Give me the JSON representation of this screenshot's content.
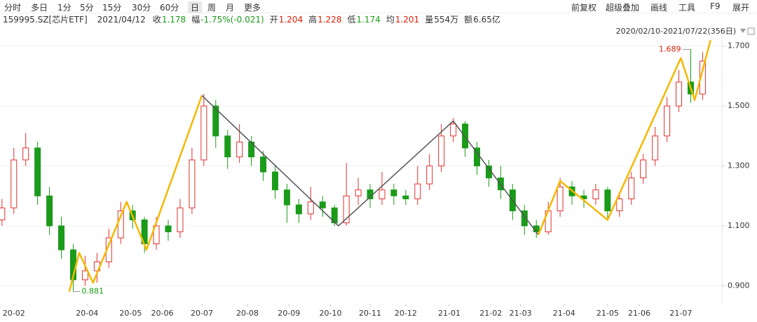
{
  "toolbar": {
    "left": [
      "分时",
      "多日",
      "1分",
      "5分",
      "15分",
      "30分",
      "60分",
      "日",
      "周",
      "月",
      "更多"
    ],
    "active": 7,
    "right": [
      "前复权",
      "超级叠加",
      "画线",
      "工具",
      "F9",
      "展开"
    ]
  },
  "info": {
    "code": "159995.SZ[芯片ETF]",
    "date": "2021/04/12",
    "items": [
      {
        "label": "收",
        "value": "1.178",
        "color": "#1a9b1a"
      },
      {
        "label": "幅",
        "value": "-1.75%(-0.021)",
        "color": "#1a9b1a"
      },
      {
        "label": "开",
        "value": "1.204",
        "color": "#d81e06"
      },
      {
        "label": "高",
        "value": "1.228",
        "color": "#d81e06"
      },
      {
        "label": "低",
        "value": "1.174",
        "color": "#1a9b1a"
      },
      {
        "label": "均",
        "value": "1.201",
        "color": "#d81e06"
      },
      {
        "label": "量",
        "value": "554万",
        "color": "#333"
      },
      {
        "label": "额",
        "value": "6.65亿",
        "color": "#333"
      }
    ]
  },
  "chart_data": {
    "type": "candlestick",
    "range_label": "2020/02/10-2021/07/22(356日)",
    "up_color": "#e0312e",
    "down_color": "#1a9b1a",
    "grid": true,
    "xlim": [
      -1,
      362
    ],
    "ylim": [
      0.84,
      1.725
    ],
    "yticks": [
      {
        "value": 0.9,
        "label": "0.900"
      },
      {
        "value": 1.1,
        "label": "1.100"
      },
      {
        "value": 1.3,
        "label": "1.300"
      },
      {
        "value": 1.5,
        "label": "1.500"
      },
      {
        "value": 1.7,
        "label": "1.700"
      }
    ],
    "xticks": [
      {
        "value": 6,
        "label": "20-02"
      },
      {
        "value": 43,
        "label": "20-04"
      },
      {
        "value": 65,
        "label": "20-05"
      },
      {
        "value": 81,
        "label": "20-06"
      },
      {
        "value": 101,
        "label": "20-07"
      },
      {
        "value": 124,
        "label": "20-08"
      },
      {
        "value": 145,
        "label": "20-09"
      },
      {
        "value": 166,
        "label": "20-10"
      },
      {
        "value": 186,
        "label": "20-11"
      },
      {
        "value": 204,
        "label": "20-12"
      },
      {
        "value": 226,
        "label": "21-01"
      },
      {
        "value": 247,
        "label": "21-02"
      },
      {
        "value": 262,
        "label": "21-03"
      },
      {
        "value": 284,
        "label": "21-04"
      },
      {
        "value": 306,
        "label": "21-05"
      },
      {
        "value": 322,
        "label": "21-06"
      },
      {
        "value": 343,
        "label": "21-07"
      }
    ],
    "candles": [
      {
        "x": 0,
        "o": 1.12,
        "h": 1.19,
        "l": 1.1,
        "c": 1.16
      },
      {
        "x": 6,
        "o": 1.16,
        "h": 1.36,
        "l": 1.14,
        "c": 1.32
      },
      {
        "x": 12,
        "o": 1.32,
        "h": 1.41,
        "l": 1.3,
        "c": 1.36
      },
      {
        "x": 18,
        "o": 1.36,
        "h": 1.38,
        "l": 1.17,
        "c": 1.2
      },
      {
        "x": 24,
        "o": 1.2,
        "h": 1.23,
        "l": 1.07,
        "c": 1.1
      },
      {
        "x": 30,
        "o": 1.1,
        "h": 1.13,
        "l": 0.99,
        "c": 1.02
      },
      {
        "x": 36,
        "o": 1.02,
        "h": 1.04,
        "l": 0.881,
        "c": 0.92
      },
      {
        "x": 42,
        "o": 0.92,
        "h": 1.0,
        "l": 0.9,
        "c": 0.95
      },
      {
        "x": 48,
        "o": 0.95,
        "h": 1.01,
        "l": 0.91,
        "c": 0.98
      },
      {
        "x": 54,
        "o": 0.98,
        "h": 1.09,
        "l": 0.96,
        "c": 1.06
      },
      {
        "x": 60,
        "o": 1.06,
        "h": 1.18,
        "l": 1.04,
        "c": 1.15
      },
      {
        "x": 66,
        "o": 1.15,
        "h": 1.17,
        "l": 1.09,
        "c": 1.12
      },
      {
        "x": 72,
        "o": 1.12,
        "h": 1.13,
        "l": 1.01,
        "c": 1.04
      },
      {
        "x": 78,
        "o": 1.04,
        "h": 1.13,
        "l": 1.02,
        "c": 1.1
      },
      {
        "x": 84,
        "o": 1.1,
        "h": 1.12,
        "l": 1.05,
        "c": 1.08
      },
      {
        "x": 90,
        "o": 1.08,
        "h": 1.19,
        "l": 1.06,
        "c": 1.16
      },
      {
        "x": 96,
        "o": 1.16,
        "h": 1.36,
        "l": 1.14,
        "c": 1.32
      },
      {
        "x": 102,
        "o": 1.32,
        "h": 1.54,
        "l": 1.3,
        "c": 1.5
      },
      {
        "x": 108,
        "o": 1.5,
        "h": 1.52,
        "l": 1.36,
        "c": 1.4
      },
      {
        "x": 114,
        "o": 1.4,
        "h": 1.42,
        "l": 1.29,
        "c": 1.33
      },
      {
        "x": 120,
        "o": 1.33,
        "h": 1.44,
        "l": 1.31,
        "c": 1.38
      },
      {
        "x": 126,
        "o": 1.38,
        "h": 1.4,
        "l": 1.3,
        "c": 1.33
      },
      {
        "x": 132,
        "o": 1.33,
        "h": 1.35,
        "l": 1.25,
        "c": 1.28
      },
      {
        "x": 138,
        "o": 1.28,
        "h": 1.3,
        "l": 1.19,
        "c": 1.22
      },
      {
        "x": 144,
        "o": 1.22,
        "h": 1.24,
        "l": 1.11,
        "c": 1.17
      },
      {
        "x": 150,
        "o": 1.17,
        "h": 1.19,
        "l": 1.11,
        "c": 1.14
      },
      {
        "x": 156,
        "o": 1.14,
        "h": 1.23,
        "l": 1.12,
        "c": 1.18
      },
      {
        "x": 162,
        "o": 1.18,
        "h": 1.2,
        "l": 1.13,
        "c": 1.16
      },
      {
        "x": 168,
        "o": 1.16,
        "h": 1.17,
        "l": 1.1,
        "c": 1.11
      },
      {
        "x": 174,
        "o": 1.11,
        "h": 1.31,
        "l": 1.1,
        "c": 1.2
      },
      {
        "x": 180,
        "o": 1.2,
        "h": 1.26,
        "l": 1.17,
        "c": 1.22
      },
      {
        "x": 186,
        "o": 1.22,
        "h": 1.24,
        "l": 1.16,
        "c": 1.19
      },
      {
        "x": 192,
        "o": 1.19,
        "h": 1.28,
        "l": 1.17,
        "c": 1.22
      },
      {
        "x": 198,
        "o": 1.22,
        "h": 1.24,
        "l": 1.17,
        "c": 1.2
      },
      {
        "x": 204,
        "o": 1.2,
        "h": 1.22,
        "l": 1.17,
        "c": 1.19
      },
      {
        "x": 210,
        "o": 1.19,
        "h": 1.3,
        "l": 1.17,
        "c": 1.24
      },
      {
        "x": 216,
        "o": 1.24,
        "h": 1.34,
        "l": 1.22,
        "c": 1.3
      },
      {
        "x": 222,
        "o": 1.3,
        "h": 1.44,
        "l": 1.28,
        "c": 1.4
      },
      {
        "x": 228,
        "o": 1.4,
        "h": 1.46,
        "l": 1.38,
        "c": 1.44
      },
      {
        "x": 234,
        "o": 1.44,
        "h": 1.45,
        "l": 1.33,
        "c": 1.36
      },
      {
        "x": 240,
        "o": 1.36,
        "h": 1.38,
        "l": 1.27,
        "c": 1.3
      },
      {
        "x": 246,
        "o": 1.3,
        "h": 1.32,
        "l": 1.23,
        "c": 1.26
      },
      {
        "x": 252,
        "o": 1.26,
        "h": 1.3,
        "l": 1.19,
        "c": 1.22
      },
      {
        "x": 258,
        "o": 1.22,
        "h": 1.24,
        "l": 1.12,
        "c": 1.15
      },
      {
        "x": 264,
        "o": 1.15,
        "h": 1.17,
        "l": 1.07,
        "c": 1.1
      },
      {
        "x": 270,
        "o": 1.1,
        "h": 1.12,
        "l": 1.06,
        "c": 1.08
      },
      {
        "x": 276,
        "o": 1.08,
        "h": 1.18,
        "l": 1.07,
        "c": 1.15
      },
      {
        "x": 282,
        "o": 1.15,
        "h": 1.26,
        "l": 1.13,
        "c": 1.23
      },
      {
        "x": 288,
        "o": 1.23,
        "h": 1.25,
        "l": 1.17,
        "c": 1.2
      },
      {
        "x": 294,
        "o": 1.2,
        "h": 1.22,
        "l": 1.16,
        "c": 1.19
      },
      {
        "x": 300,
        "o": 1.19,
        "h": 1.24,
        "l": 1.17,
        "c": 1.22
      },
      {
        "x": 306,
        "o": 1.22,
        "h": 1.23,
        "l": 1.12,
        "c": 1.15
      },
      {
        "x": 312,
        "o": 1.15,
        "h": 1.21,
        "l": 1.13,
        "c": 1.19
      },
      {
        "x": 318,
        "o": 1.19,
        "h": 1.28,
        "l": 1.17,
        "c": 1.26
      },
      {
        "x": 324,
        "o": 1.26,
        "h": 1.34,
        "l": 1.24,
        "c": 1.32
      },
      {
        "x": 330,
        "o": 1.32,
        "h": 1.43,
        "l": 1.3,
        "c": 1.4
      },
      {
        "x": 336,
        "o": 1.4,
        "h": 1.53,
        "l": 1.38,
        "c": 1.5
      },
      {
        "x": 342,
        "o": 1.5,
        "h": 1.62,
        "l": 1.48,
        "c": 1.58
      },
      {
        "x": 348,
        "o": 1.58,
        "h": 1.689,
        "l": 1.51,
        "c": 1.54
      },
      {
        "x": 354,
        "o": 1.54,
        "h": 1.68,
        "l": 1.52,
        "c": 1.65
      }
    ],
    "annotations": [
      {
        "x": 348,
        "value": 1.689,
        "label": "1.689",
        "color": "#d81e06",
        "side": "left"
      },
      {
        "x": 36,
        "value": 0.881,
        "label": "0.881",
        "color": "#1a9b1a",
        "side": "right"
      }
    ],
    "lines": [
      {
        "color": "#f5b800",
        "x": [
          34,
          39,
          46,
          63,
          73,
          101
        ],
        "y": [
          0.88,
          1.01,
          0.91,
          1.18,
          1.02,
          1.535
        ]
      },
      {
        "color": "#555555",
        "x": [
          101,
          170,
          228,
          271
        ],
        "y": [
          1.535,
          1.1,
          1.45,
          1.07
        ]
      },
      {
        "color": "#f5b800",
        "x": [
          271,
          282,
          306,
          343,
          350,
          358
        ],
        "y": [
          1.07,
          1.25,
          1.12,
          1.66,
          1.52,
          1.72
        ]
      }
    ]
  }
}
